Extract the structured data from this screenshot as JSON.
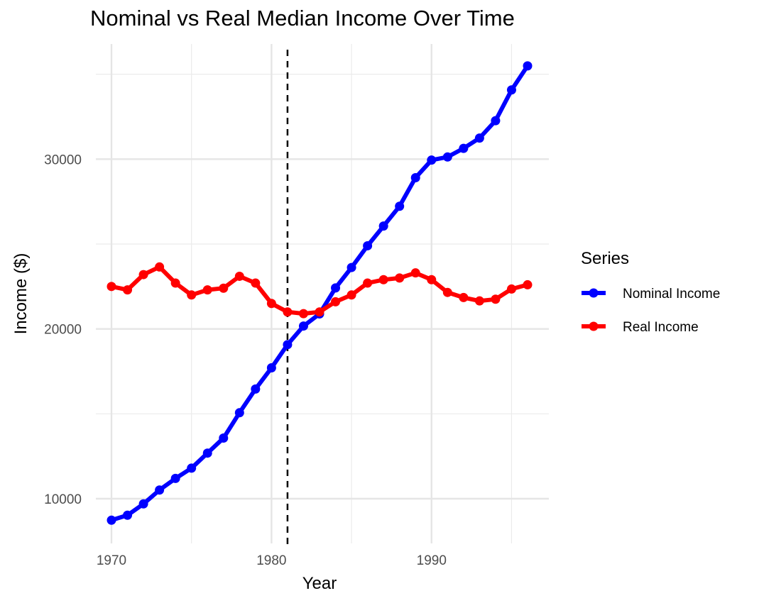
{
  "chart_data": {
    "type": "line",
    "title": "Nominal vs Real Median Income Over Time",
    "xlabel": "Year",
    "ylabel": "Income ($)",
    "xlim": [
      1970,
      1996
    ],
    "ylim": [
      7500,
      35500
    ],
    "x_ticks": [
      1970,
      1980,
      1990
    ],
    "x_minor_ticks": [
      1975,
      1985,
      1995
    ],
    "y_ticks": [
      10000,
      20000,
      30000
    ],
    "y_minor_ticks": [
      15000,
      25000,
      35000
    ],
    "grid": true,
    "reference_line": {
      "x": 1981,
      "style": "dashed",
      "color": "#000000"
    },
    "legend": {
      "title": "Series",
      "position": "right"
    },
    "x": [
      1970,
      1971,
      1972,
      1973,
      1974,
      1975,
      1976,
      1977,
      1978,
      1979,
      1980,
      1981,
      1982,
      1983,
      1984,
      1985,
      1986,
      1987,
      1988,
      1989,
      1990,
      1991,
      1992,
      1993,
      1994,
      1995,
      1996
    ],
    "series": [
      {
        "name": "Nominal Income",
        "color": "#0000ff",
        "values": [
          8734,
          9028,
          9697,
          10512,
          11197,
          11800,
          12686,
          13572,
          15064,
          16461,
          17710,
          19074,
          20171,
          20885,
          22415,
          23618,
          24897,
          26061,
          27225,
          28906,
          29943,
          30126,
          30636,
          31241,
          32264,
          34076,
          35492
        ]
      },
      {
        "name": "Real Income",
        "color": "#ff0000",
        "values": [
          22500,
          22300,
          23200,
          23650,
          22700,
          22000,
          22300,
          22400,
          23100,
          22700,
          21500,
          21000,
          20900,
          21000,
          21600,
          22000,
          22700,
          22900,
          23000,
          23300,
          22900,
          22150,
          21850,
          21650,
          21750,
          22350,
          22600
        ]
      }
    ]
  }
}
